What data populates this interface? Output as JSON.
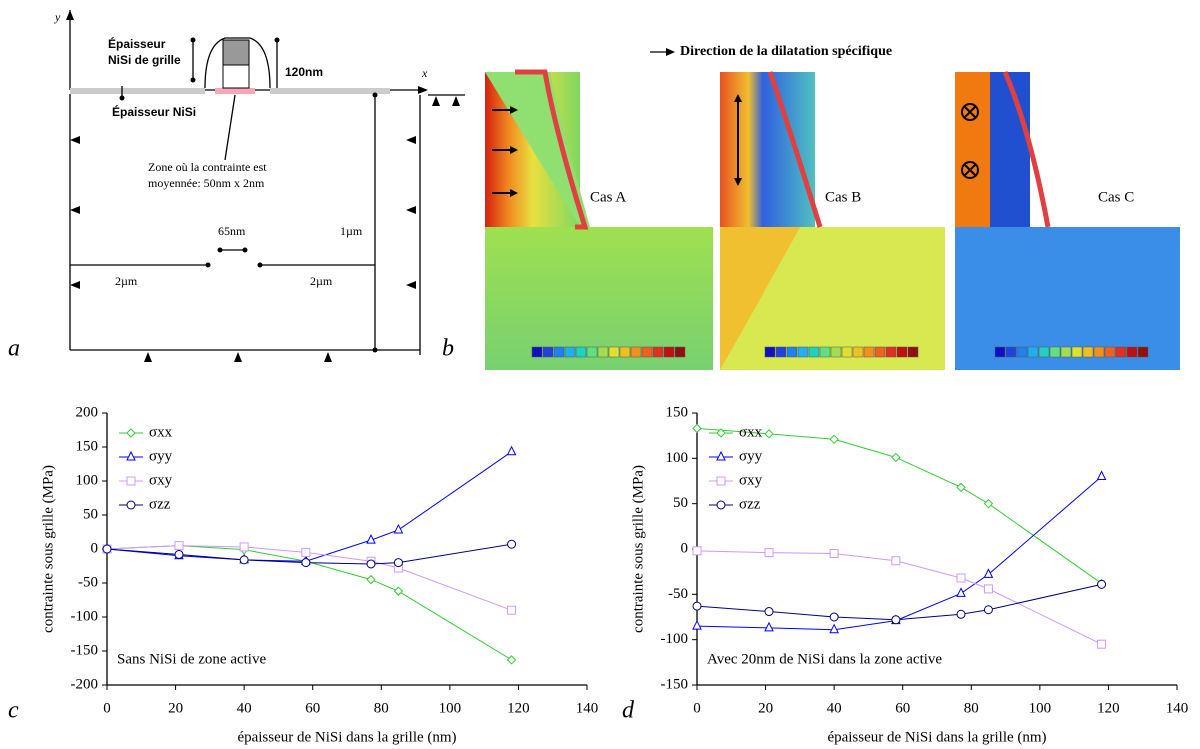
{
  "panel_labels": [
    "a",
    "b",
    "c",
    "d"
  ],
  "diagram": {
    "axis_y": "y",
    "axis_x": "x",
    "gate_nisi_label": [
      "Épaisseur",
      "NiSi de grille"
    ],
    "gate_height": "120nm",
    "active_nisi_label": "Épaisseur NiSi",
    "averaging_zone": [
      "Zone où la contrainte est",
      "moyennée: 50nm x 2nm"
    ],
    "height": "1µm",
    "gate_length": "65nm",
    "left_width": "2µm",
    "right_width": "2µm"
  },
  "simulation": {
    "legend": "Direction de la dilatation spécifique",
    "cases": [
      "Cas A",
      "Cas B",
      "Cas C"
    ]
  },
  "chart_data": [
    {
      "type": "line",
      "xlabel": "épaisseur de NiSi dans la grille (nm)",
      "ylabel": "contrainte sous grille (MPa)",
      "annotation": "Sans NiSi de zone active",
      "x": [
        0,
        21,
        40,
        58,
        77,
        85,
        118
      ],
      "xlim": [
        0,
        140
      ],
      "xticks": [
        0,
        20,
        40,
        60,
        80,
        100,
        120,
        140
      ],
      "ylim": [
        -200,
        200
      ],
      "yticks": [
        -200,
        -150,
        -100,
        -50,
        0,
        50,
        100,
        150,
        200
      ],
      "grid": false,
      "legend": "upper left",
      "series": [
        {
          "name": "σxx",
          "color": "#33cc33",
          "marker": "diamond",
          "values": [
            0,
            5,
            -1,
            -18,
            -45,
            -62,
            -163
          ]
        },
        {
          "name": "σyy",
          "color": "#0000ff",
          "marker": "triangle",
          "values": [
            0,
            -10,
            -16,
            -18,
            13,
            28,
            143
          ]
        },
        {
          "name": "σxy",
          "color": "#cc99ff",
          "marker": "square",
          "values": [
            0,
            5,
            3,
            -5,
            -18,
            -28,
            -90
          ]
        },
        {
          "name": "σzz",
          "color": "#000080",
          "marker": "circle",
          "values": [
            0,
            -8,
            -16,
            -20,
            -22,
            -20,
            7
          ]
        }
      ]
    },
    {
      "type": "line",
      "xlabel": "épaisseur de NiSi dans la grille (nm)",
      "ylabel": "contrainte sous grille (MPa)",
      "annotation": "Avec 20nm de NiSi dans la zone active",
      "x": [
        0,
        21,
        40,
        58,
        77,
        85,
        118
      ],
      "xlim": [
        0,
        140
      ],
      "xticks": [
        0,
        20,
        40,
        60,
        80,
        100,
        120,
        140
      ],
      "ylim": [
        -150,
        150
      ],
      "yticks": [
        -150,
        -100,
        -50,
        0,
        50,
        100,
        150
      ],
      "grid": false,
      "legend": "upper left",
      "series": [
        {
          "name": "σxx",
          "color": "#33cc33",
          "marker": "diamond",
          "values": [
            133,
            127,
            121,
            101,
            68,
            50,
            -38
          ]
        },
        {
          "name": "σyy",
          "color": "#0000ff",
          "marker": "triangle",
          "values": [
            -85,
            -87,
            -89,
            -79,
            -49,
            -28,
            80
          ]
        },
        {
          "name": "σxy",
          "color": "#cc99ff",
          "marker": "square",
          "values": [
            -2,
            -4,
            -5,
            -13,
            -32,
            -44,
            -105
          ]
        },
        {
          "name": "σzz",
          "color": "#000080",
          "marker": "circle",
          "values": [
            -63,
            -69,
            -75,
            -78,
            -72,
            -67,
            -39
          ]
        }
      ]
    }
  ]
}
